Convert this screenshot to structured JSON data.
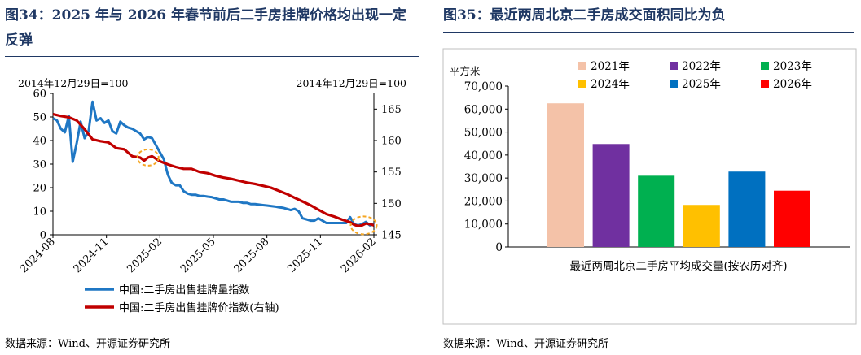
{
  "left": {
    "title": "图34：2025 年与 2026 年春节前后二手房挂牌价格均出现一定反弹",
    "source": "数据来源：Wind、开源证券研究所",
    "left_note": "2014年12月29日=100",
    "right_note": "2014年12月29日=100"
  },
  "right": {
    "title": "图35：最近两周北京二手房成交面积同比为负",
    "source": "数据来源：Wind、开源证券研究所"
  },
  "colors": {
    "title": "#1f3864",
    "blue_line": "#1f77c4",
    "red_line": "#c00000",
    "highlight": "#f5a623"
  },
  "chart_data": [
    {
      "type": "line",
      "x_tick_labels": [
        "2024-08",
        "2024-11",
        "2025-02",
        "2025-05",
        "2025-08",
        "2025-11",
        "2026-02"
      ],
      "ylim_left": [
        0,
        60
      ],
      "yticks_left": [
        0,
        10,
        20,
        30,
        40,
        50,
        60
      ],
      "ylim_right": [
        145,
        167.5
      ],
      "yticks_right": [
        145,
        150,
        155,
        160,
        165
      ],
      "grid": false,
      "legend_position": "bottom",
      "highlights": [
        "2025-01",
        "2026-02"
      ],
      "series": [
        {
          "name": "中国:二手房出售挂牌量指数",
          "axis": "left",
          "color": "#1f77c4",
          "points": [
            [
              "2024-08-01",
              49.5
            ],
            [
              "2024-08-08",
              48.5
            ],
            [
              "2024-08-15",
              45
            ],
            [
              "2024-08-22",
              43.5
            ],
            [
              "2024-08-29",
              50.5
            ],
            [
              "2024-09-05",
              31
            ],
            [
              "2024-09-12",
              39
            ],
            [
              "2024-09-19",
              48
            ],
            [
              "2024-09-26",
              41
            ],
            [
              "2024-10-03",
              44
            ],
            [
              "2024-10-10",
              56.5
            ],
            [
              "2024-10-17",
              48.5
            ],
            [
              "2024-10-24",
              49.5
            ],
            [
              "2024-10-31",
              47.5
            ],
            [
              "2024-11-07",
              48.5
            ],
            [
              "2024-11-14",
              44
            ],
            [
              "2024-11-21",
              43
            ],
            [
              "2024-11-28",
              48
            ],
            [
              "2024-12-05",
              46.5
            ],
            [
              "2024-12-12",
              45.5
            ],
            [
              "2024-12-19",
              45
            ],
            [
              "2024-12-26",
              44
            ],
            [
              "2025-01-02",
              43
            ],
            [
              "2025-01-09",
              40.5
            ],
            [
              "2025-01-16",
              41.5
            ],
            [
              "2025-01-23",
              41
            ],
            [
              "2025-01-30",
              38
            ],
            [
              "2025-02-06",
              35
            ],
            [
              "2025-02-13",
              32
            ],
            [
              "2025-02-20",
              25.5
            ],
            [
              "2025-02-27",
              22
            ],
            [
              "2025-03-06",
              21
            ],
            [
              "2025-03-13",
              21
            ],
            [
              "2025-03-20",
              18.5
            ],
            [
              "2025-03-27",
              17.5
            ],
            [
              "2025-04-03",
              17
            ],
            [
              "2025-04-10",
              17
            ],
            [
              "2025-04-17",
              16.5
            ],
            [
              "2025-04-24",
              16.5
            ],
            [
              "2025-05-01",
              16.2
            ],
            [
              "2025-05-08",
              16
            ],
            [
              "2025-05-15",
              15.5
            ],
            [
              "2025-05-22",
              15
            ],
            [
              "2025-05-29",
              15
            ],
            [
              "2025-06-05",
              14.5
            ],
            [
              "2025-06-12",
              14
            ],
            [
              "2025-06-19",
              14
            ],
            [
              "2025-06-26",
              14
            ],
            [
              "2025-07-03",
              13.5
            ],
            [
              "2025-07-10",
              13.5
            ],
            [
              "2025-07-17",
              13
            ],
            [
              "2025-07-24",
              13
            ],
            [
              "2025-07-31",
              12.8
            ],
            [
              "2025-08-07",
              12.6
            ],
            [
              "2025-08-14",
              12.4
            ],
            [
              "2025-08-21",
              12.2
            ],
            [
              "2025-08-28",
              12
            ],
            [
              "2025-09-04",
              11.7
            ],
            [
              "2025-09-11",
              11.5
            ],
            [
              "2025-09-18",
              11
            ],
            [
              "2025-09-25",
              10.5
            ],
            [
              "2025-10-02",
              11
            ],
            [
              "2025-10-09",
              10
            ],
            [
              "2025-10-16",
              7
            ],
            [
              "2025-10-23",
              6.5
            ],
            [
              "2025-10-30",
              6
            ],
            [
              "2025-11-06",
              6
            ],
            [
              "2025-11-13",
              7
            ],
            [
              "2025-11-20",
              6
            ],
            [
              "2025-11-27",
              5
            ],
            [
              "2025-12-04",
              5
            ],
            [
              "2025-12-11",
              5
            ],
            [
              "2025-12-18",
              5
            ],
            [
              "2025-12-25",
              5
            ],
            [
              "2026-01-01",
              5
            ],
            [
              "2026-01-08",
              7.5
            ],
            [
              "2026-01-15",
              4.5
            ],
            [
              "2026-01-22",
              4
            ],
            [
              "2026-01-29",
              4.5
            ],
            [
              "2026-02-05",
              5.5
            ],
            [
              "2026-02-12",
              4
            ],
            [
              "2026-02-19",
              4.5
            ]
          ]
        },
        {
          "name": "中国:二手房出售挂牌价指数(右轴)",
          "axis": "right",
          "color": "#c00000",
          "points": [
            [
              "2024-08-01",
              164.2
            ],
            [
              "2024-08-15",
              163.9
            ],
            [
              "2024-08-29",
              163.7
            ],
            [
              "2024-09-12",
              163.2
            ],
            [
              "2024-09-26",
              161.8
            ],
            [
              "2024-10-10",
              160.2
            ],
            [
              "2024-10-24",
              159.9
            ],
            [
              "2024-11-07",
              159.7
            ],
            [
              "2024-11-21",
              158.8
            ],
            [
              "2024-12-05",
              158.6
            ],
            [
              "2024-12-19",
              157.5
            ],
            [
              "2025-01-02",
              157.3
            ],
            [
              "2025-01-09",
              156.8
            ],
            [
              "2025-01-16",
              157.3
            ],
            [
              "2025-01-23",
              157.5
            ],
            [
              "2025-01-30",
              157.1
            ],
            [
              "2025-02-06",
              156.7
            ],
            [
              "2025-02-20",
              156.2
            ],
            [
              "2025-03-06",
              155.8
            ],
            [
              "2025-03-20",
              155.5
            ],
            [
              "2025-04-03",
              155.5
            ],
            [
              "2025-04-17",
              155.0
            ],
            [
              "2025-05-01",
              154.8
            ],
            [
              "2025-05-15",
              154.4
            ],
            [
              "2025-05-29",
              154.1
            ],
            [
              "2025-06-12",
              153.9
            ],
            [
              "2025-06-26",
              153.6
            ],
            [
              "2025-07-10",
              153.3
            ],
            [
              "2025-07-24",
              153.1
            ],
            [
              "2025-08-07",
              152.8
            ],
            [
              "2025-08-21",
              152.5
            ],
            [
              "2025-09-04",
              152.0
            ],
            [
              "2025-09-18",
              151.5
            ],
            [
              "2025-10-02",
              150.9
            ],
            [
              "2025-10-16",
              150.3
            ],
            [
              "2025-10-30",
              149.7
            ],
            [
              "2025-11-13",
              149.0
            ],
            [
              "2025-11-27",
              148.3
            ],
            [
              "2025-12-11",
              147.9
            ],
            [
              "2025-12-25",
              147.4
            ],
            [
              "2026-01-08",
              147.0
            ],
            [
              "2026-01-15",
              146.6
            ],
            [
              "2026-01-22",
              146.4
            ],
            [
              "2026-01-29",
              146.5
            ],
            [
              "2026-02-05",
              146.8
            ],
            [
              "2026-02-12",
              146.7
            ],
            [
              "2026-02-19",
              146.5
            ]
          ]
        }
      ]
    },
    {
      "type": "bar",
      "unit_label": "平方米",
      "xlabel": "最近两周北京二手房平均成交量(按农历对齐)",
      "ylim": [
        0,
        70000
      ],
      "yticks": [
        0,
        10000,
        20000,
        30000,
        40000,
        50000,
        60000,
        70000
      ],
      "ytick_labels": [
        "0",
        "10,000",
        "20,000",
        "30,000",
        "40,000",
        "50,000",
        "60,000",
        "70,000"
      ],
      "grid": false,
      "legend_position": "top",
      "series": [
        {
          "name": "2021年",
          "value": 62500,
          "color": "#f4c2a8"
        },
        {
          "name": "2022年",
          "value": 44800,
          "color": "#7030a0"
        },
        {
          "name": "2023年",
          "value": 31000,
          "color": "#00b050"
        },
        {
          "name": "2024年",
          "value": 18300,
          "color": "#ffc000"
        },
        {
          "name": "2025年",
          "value": 32800,
          "color": "#0070c0"
        },
        {
          "name": "2026年",
          "value": 24500,
          "color": "#ff0000"
        }
      ]
    }
  ]
}
